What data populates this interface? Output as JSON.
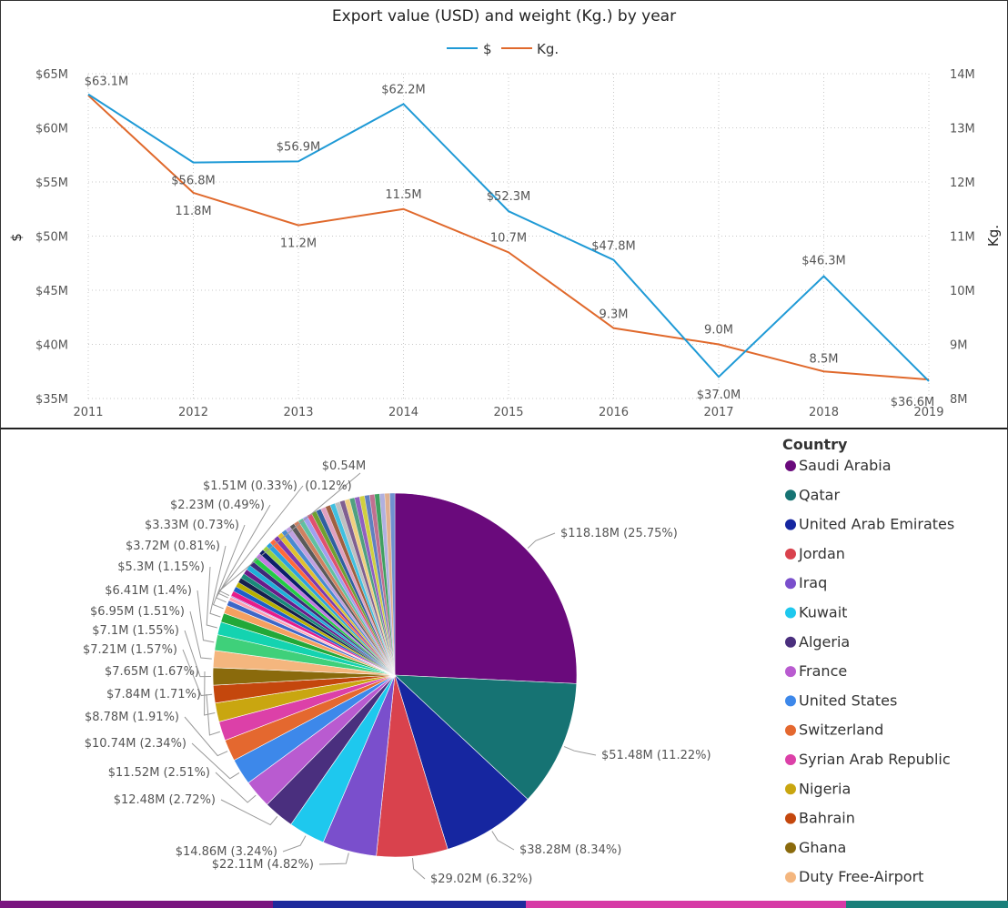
{
  "chart_data": [
    {
      "type": "line",
      "title": "Export value (USD) and weight (Kg.) by year",
      "xlabel": "",
      "ylabel": "$",
      "y2label": "Kg.",
      "x": [
        "2011",
        "2012",
        "2013",
        "2014",
        "2015",
        "2016",
        "2017",
        "2018",
        "2019"
      ],
      "ylim": [
        35,
        65
      ],
      "y2lim": [
        8,
        14
      ],
      "yticks": [
        "$35M",
        "$40M",
        "$45M",
        "$50M",
        "$55M",
        "$60M",
        "$65M"
      ],
      "y2ticks": [
        "8M",
        "9M",
        "10M",
        "11M",
        "12M",
        "13M",
        "14M"
      ],
      "legend": [
        "$",
        "Kg."
      ],
      "colors": {
        "usd": "#1f9ad6",
        "kg": "#e0692c",
        "grid": "#c8c8c8"
      },
      "series": [
        {
          "name": "$",
          "axis": "left",
          "values": [
            63.1,
            56.8,
            56.9,
            62.2,
            52.3,
            47.8,
            37.0,
            46.3,
            36.6
          ],
          "labels": [
            "$63.1M",
            "$56.8M",
            "$56.9M",
            "$62.2M",
            "$52.3M",
            "$47.8M",
            "$37.0M",
            "$46.3M",
            "$36.6M"
          ]
        },
        {
          "name": "Kg.",
          "axis": "right",
          "values": [
            13.6,
            11.8,
            11.2,
            11.5,
            10.7,
            9.3,
            9.0,
            8.5,
            8.35
          ],
          "labels": [
            "",
            "11.8M",
            "11.2M",
            "11.5M",
            "10.7M",
            "9.3M",
            "9.0M",
            "8.5M",
            ""
          ]
        }
      ]
    },
    {
      "type": "pie",
      "legend_title": "Country",
      "legend": [
        {
          "name": "Saudi Arabia",
          "color": "#6a0a7c"
        },
        {
          "name": "Qatar",
          "color": "#167373"
        },
        {
          "name": "United Arab Emirates",
          "color": "#1626a0"
        },
        {
          "name": "Jordan",
          "color": "#d9424d"
        },
        {
          "name": "Iraq",
          "color": "#7a4fcc"
        },
        {
          "name": "Kuwait",
          "color": "#1ec8ee"
        },
        {
          "name": "Algeria",
          "color": "#4a2f7e"
        },
        {
          "name": "France",
          "color": "#b95bd0"
        },
        {
          "name": "United States",
          "color": "#3d88ea"
        },
        {
          "name": "Switzerland",
          "color": "#e4682f"
        },
        {
          "name": "Syrian Arab Republic",
          "color": "#dc40a8"
        },
        {
          "name": "Nigeria",
          "color": "#c9a610"
        },
        {
          "name": "Bahrain",
          "color": "#c4470d"
        },
        {
          "name": "Ghana",
          "color": "#8a6a0c"
        },
        {
          "name": "Duty Free-Airport",
          "color": "#f4b67e"
        }
      ],
      "slices": [
        {
          "value": 118.18,
          "label": "$118.18M (25.75%)",
          "color": "#6a0a7c"
        },
        {
          "value": 51.48,
          "label": "$51.48M (11.22%)",
          "color": "#167373"
        },
        {
          "value": 38.28,
          "label": "$38.28M (8.34%)",
          "color": "#1626a0"
        },
        {
          "value": 29.02,
          "label": "$29.02M (6.32%)",
          "color": "#d9424d"
        },
        {
          "value": 22.11,
          "label": "$22.11M (4.82%)",
          "color": "#7a4fcc"
        },
        {
          "value": 14.86,
          "label": "$14.86M (3.24%)",
          "color": "#1ec8ee"
        },
        {
          "value": 12.48,
          "label": "$12.48M (2.72%)",
          "color": "#4a2f7e"
        },
        {
          "value": 11.52,
          "label": "$11.52M (2.51%)",
          "color": "#b95bd0"
        },
        {
          "value": 10.74,
          "label": "$10.74M (2.34%)",
          "color": "#3d88ea"
        },
        {
          "value": 8.78,
          "label": "$8.78M (1.91%)",
          "color": "#e4682f"
        },
        {
          "value": 7.84,
          "label": "$7.84M (1.71%)",
          "color": "#dc40a8"
        },
        {
          "value": 7.65,
          "label": "$7.65M (1.67%)",
          "color": "#c9a610"
        },
        {
          "value": 7.21,
          "label": "$7.21M (1.57%)",
          "color": "#c4470d"
        },
        {
          "value": 7.1,
          "label": "$7.1M (1.55%)",
          "color": "#8a6a0c"
        },
        {
          "value": 6.95,
          "label": "$6.95M (1.51%)",
          "color": "#f4b67e"
        },
        {
          "value": 6.41,
          "label": "$6.41M (1.4%)",
          "color": "#3fd07a"
        },
        {
          "value": 5.3,
          "label": "$5.3M (1.15%)",
          "color": "#14d3b0"
        },
        {
          "value": 3.72,
          "label": "$3.72M (0.81%)",
          "color": "#22a838"
        },
        {
          "value": 3.33,
          "label": "$3.33M (0.73%)",
          "color": "#f5a060"
        },
        {
          "value": 2.23,
          "label": "$2.23M (0.49%)",
          "color": "#3e67c8"
        },
        {
          "value": 1.51,
          "label": "$1.51M (0.33%)",
          "color": "#ff9fb0"
        },
        {
          "value": 0.54,
          "label": "$0.54M",
          "color": "#aa88dd"
        }
      ],
      "extra_labels": [
        "(0.12%)"
      ],
      "remainder_colors": [
        "#e81c8a",
        "#1d5ec8",
        "#b8b000",
        "#16204c",
        "#1a8a7a",
        "#6a1a8a",
        "#1fb0d8",
        "#3d2a7a",
        "#22cc44",
        "#c07ae0",
        "#0b1f6a",
        "#9ad040",
        "#2aa0e0",
        "#ff6a3a",
        "#7a3ab0",
        "#e0c030",
        "#4a8ad0",
        "#c0a0e0",
        "#5a5a5a",
        "#d08060",
        "#60c0a0",
        "#a0a0f0",
        "#e05070",
        "#70a030",
        "#3060a0",
        "#e0a0c0",
        "#a06040",
        "#40c0e0",
        "#c0c0c0",
        "#806090",
        "#f0d080",
        "#50a080",
        "#9060c0",
        "#d0d040",
        "#6080c0",
        "#c07090",
        "#40a060",
        "#b0b0e0",
        "#e0b090",
        "#7090d0"
      ]
    }
  ],
  "bottom_strip": [
    "#7a1580",
    "#1f2a9c",
    "#d63aa6",
    "#1a7f7a"
  ]
}
